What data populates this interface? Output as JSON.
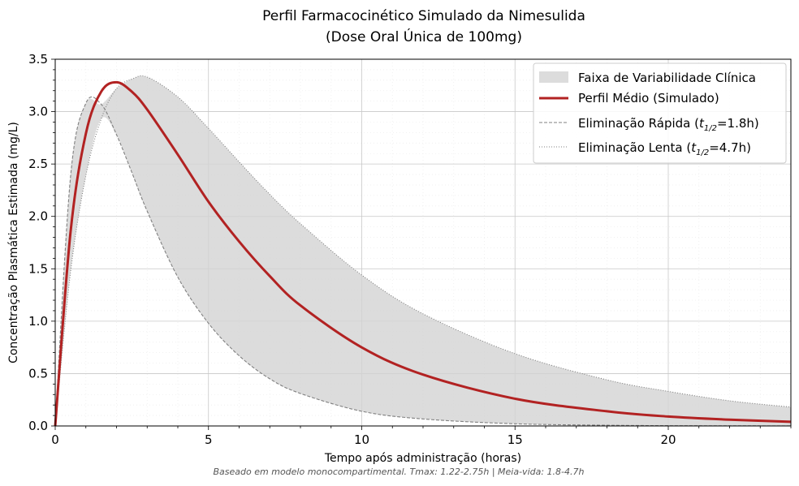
{
  "chart_data": {
    "type": "line",
    "title_line1": "Perfil Farmacocinético Simulado da Nimesulida",
    "title_line2": "(Dose Oral Única de 100mg)",
    "xlabel": "Tempo após administração (horas)",
    "ylabel": "Concentração Plasmática Estimada (mg/L)",
    "footnote": "Baseado em modelo monocompartimental. Tmax: 1.22-2.75h | Meia-vida: 1.8-4.7h",
    "xlim": [
      0,
      24
    ],
    "ylim": [
      0,
      3.5
    ],
    "xticks": [
      "0",
      "5",
      "10",
      "15",
      "20"
    ],
    "xtick_values": [
      0,
      5,
      10,
      15,
      20
    ],
    "yticks": [
      "0.0",
      "0.5",
      "1.0",
      "1.5",
      "2.0",
      "2.5",
      "3.0",
      "3.5"
    ],
    "ytick_values": [
      0,
      0.5,
      1.0,
      1.5,
      2.0,
      2.5,
      3.0,
      3.5
    ],
    "grid": true,
    "legend_position": "top-right",
    "x": [
      0,
      0.5,
      1,
      1.5,
      2,
      2.5,
      3,
      4,
      5,
      6,
      7,
      8,
      10,
      12,
      15,
      18,
      20,
      22,
      24
    ],
    "series": [
      {
        "name": "Eliminação Rápida",
        "legend_main": "Eliminação Rápida (",
        "legend_sub": "1/2",
        "legend_tail": "=1.8h)",
        "style": "dashed",
        "color": "#808080",
        "values": [
          0,
          2.38,
          3.08,
          3.07,
          2.78,
          2.42,
          2.05,
          1.42,
          0.98,
          0.67,
          0.45,
          0.31,
          0.14,
          0.067,
          0.021,
          0.007,
          0.003,
          0.0015,
          0.0007
        ]
      },
      {
        "name": "Eliminação Lenta",
        "legend_main": "Eliminação Lenta (",
        "legend_sub": "1/2",
        "legend_tail": "=4.7h)",
        "style": "dotted",
        "color": "#808080",
        "values": [
          0,
          1.47,
          2.39,
          2.93,
          3.22,
          3.31,
          3.33,
          3.14,
          2.84,
          2.52,
          2.21,
          1.93,
          1.44,
          1.07,
          0.69,
          0.44,
          0.33,
          0.24,
          0.18
        ]
      },
      {
        "name": "Perfil Médio (Simulado)",
        "style": "solid",
        "color": "#b22222",
        "values": [
          0,
          1.85,
          2.79,
          3.19,
          3.28,
          3.19,
          3.02,
          2.59,
          2.14,
          1.76,
          1.43,
          1.15,
          0.75,
          0.49,
          0.26,
          0.14,
          0.09,
          0.06,
          0.04
        ]
      }
    ],
    "band": {
      "name": "Faixa de Variabilidade Clínica",
      "color": "#d3d3d3"
    }
  }
}
